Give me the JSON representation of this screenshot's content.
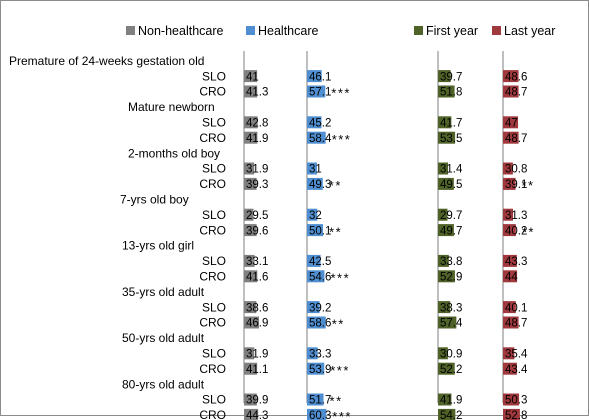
{
  "chart_data": {
    "type": "bar",
    "orientation": "horizontal",
    "layout": "four side-by-side panels, one per series",
    "legend": "top",
    "grid": false,
    "xlim": [
      0,
      100
    ],
    "series": [
      {
        "name": "Non-healthcare",
        "color": "#808080"
      },
      {
        "name": "Healthcare",
        "color": "#4f8fd1"
      },
      {
        "name": "First year",
        "color": "#4f6228"
      },
      {
        "name": "Last year",
        "color": "#a0393d"
      }
    ],
    "groups": [
      {
        "title": "Premature of 24-weeks gestation old",
        "rows": [
          {
            "label": "SLO",
            "values": [
              41,
              46.1,
              39.7,
              48.6
            ],
            "sig": [
              "",
              "",
              "",
              ""
            ]
          },
          {
            "label": "CRO",
            "values": [
              41.3,
              57.1,
              51.8,
              48.7
            ],
            "sig": [
              "",
              "***",
              "",
              ""
            ]
          }
        ]
      },
      {
        "title": "Mature newborn",
        "rows": [
          {
            "label": "SLO",
            "values": [
              42.8,
              45.2,
              41.7,
              47
            ],
            "sig": [
              "",
              "",
              "",
              ""
            ]
          },
          {
            "label": "CRO",
            "values": [
              41.9,
              58.4,
              53.5,
              48.7
            ],
            "sig": [
              "",
              "***",
              "",
              ""
            ]
          }
        ]
      },
      {
        "title": "2-months old boy",
        "rows": [
          {
            "label": "SLO",
            "values": [
              31.9,
              31,
              31.4,
              30.8
            ],
            "sig": [
              "",
              "",
              "",
              ""
            ]
          },
          {
            "label": "CRO",
            "values": [
              39.3,
              49.3,
              49.5,
              39.1
            ],
            "sig": [
              "",
              "**",
              "",
              "**"
            ]
          }
        ]
      },
      {
        "title": "7-yrs old boy",
        "rows": [
          {
            "label": "SLO",
            "values": [
              29.5,
              32,
              29.7,
              31.3
            ],
            "sig": [
              "",
              "",
              "",
              ""
            ]
          },
          {
            "label": "CRO",
            "values": [
              39.6,
              50.1,
              49.7,
              40.2
            ],
            "sig": [
              "",
              "**",
              "",
              "**"
            ]
          }
        ]
      },
      {
        "title": "13-yrs old girl",
        "rows": [
          {
            "label": "SLO",
            "values": [
              33.1,
              42.5,
              33.8,
              43.3
            ],
            "sig": [
              "",
              "",
              "",
              ""
            ]
          },
          {
            "label": "CRO",
            "values": [
              41.6,
              54.6,
              52.9,
              44
            ],
            "sig": [
              "",
              "***",
              "",
              ""
            ]
          }
        ]
      },
      {
        "title": "35-yrs old adult",
        "rows": [
          {
            "label": "SLO",
            "values": [
              38.6,
              39.2,
              38.3,
              40.1
            ],
            "sig": [
              "",
              "",
              "",
              ""
            ]
          },
          {
            "label": "CRO",
            "values": [
              46.9,
              58.6,
              57.4,
              48.7
            ],
            "sig": [
              "",
              "**",
              "",
              ""
            ]
          }
        ]
      },
      {
        "title": "50-yrs old adult",
        "rows": [
          {
            "label": "SLO",
            "values": [
              31.9,
              33.3,
              30.9,
              35.4
            ],
            "sig": [
              "",
              "",
              "",
              ""
            ]
          },
          {
            "label": "CRO",
            "values": [
              41.1,
              53.9,
              52.2,
              43.4
            ],
            "sig": [
              "",
              "***",
              "",
              ""
            ]
          }
        ]
      },
      {
        "title": "80-yrs old adult",
        "rows": [
          {
            "label": "SLO",
            "values": [
              39.9,
              51.7,
              41.9,
              50.3
            ],
            "sig": [
              "",
              "**",
              "",
              ""
            ]
          },
          {
            "label": "CRO",
            "values": [
              44.3,
              60.3,
              54.2,
              52.8
            ],
            "sig": [
              "",
              "***",
              "",
              ""
            ]
          }
        ]
      }
    ]
  }
}
